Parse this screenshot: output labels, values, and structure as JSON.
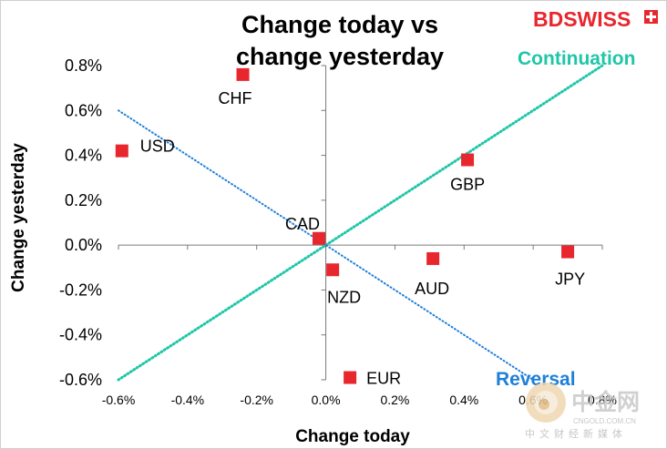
{
  "brand": {
    "name": "BDSWISS",
    "color": "#e8262d"
  },
  "watermark": {
    "name": "中金网",
    "url": "CNGOLD.COM.CN",
    "tagline": "中文财经新媒体"
  },
  "chart_data": {
    "type": "scatter",
    "title_line1": "Change today vs",
    "title_line2": "change yesterday",
    "xlabel": "Change today",
    "ylabel": "Change yesterday",
    "xlim": [
      -0.6,
      0.8
    ],
    "ylim": [
      -0.6,
      0.8
    ],
    "x_ticks": [
      "-0.6%",
      "-0.4%",
      "-0.2%",
      "0.0%",
      "0.2%",
      "0.4%",
      "0.6%",
      "0.8%"
    ],
    "y_ticks": [
      "0.8%",
      "0.6%",
      "0.4%",
      "0.2%",
      "0.0%",
      "-0.2%",
      "-0.4%",
      "-0.6%"
    ],
    "points": [
      {
        "label": "CHF",
        "x": -0.24,
        "y": 0.76
      },
      {
        "label": "USD",
        "x": -0.59,
        "y": 0.42
      },
      {
        "label": "GBP",
        "x": 0.41,
        "y": 0.38
      },
      {
        "label": "CAD",
        "x": -0.02,
        "y": 0.03
      },
      {
        "label": "AUD",
        "x": 0.31,
        "y": -0.06
      },
      {
        "label": "JPY",
        "x": 0.7,
        "y": -0.03
      },
      {
        "label": "NZD",
        "x": 0.02,
        "y": -0.11
      },
      {
        "label": "EUR",
        "x": 0.07,
        "y": -0.59
      }
    ],
    "lines": [
      {
        "name": "Continuation",
        "from": [
          -0.6,
          -0.6
        ],
        "to": [
          0.8,
          0.8
        ],
        "color": "#1fc6a8"
      },
      {
        "name": "Reversal",
        "from": [
          -0.6,
          0.6
        ],
        "to": [
          0.6,
          -0.6
        ],
        "color": "#1e7fd8"
      }
    ],
    "marker_color": "#e8262d",
    "grid": false
  }
}
